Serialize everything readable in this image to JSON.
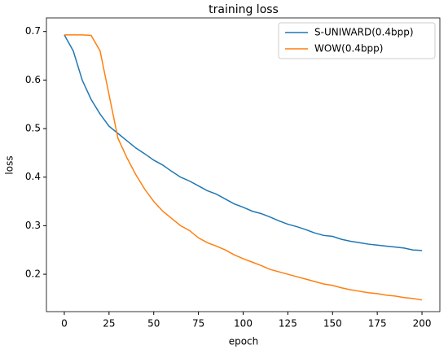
{
  "chart_data": {
    "type": "line",
    "title": "training loss",
    "xlabel": "epoch",
    "ylabel": "loss",
    "x": [
      0,
      5,
      10,
      15,
      20,
      25,
      30,
      35,
      40,
      45,
      50,
      55,
      60,
      65,
      70,
      75,
      80,
      85,
      90,
      95,
      100,
      105,
      110,
      115,
      120,
      125,
      130,
      135,
      140,
      145,
      150,
      155,
      160,
      165,
      170,
      175,
      180,
      185,
      190,
      195,
      200
    ],
    "series": [
      {
        "name": "S-UNIWARD(0.4bpp)",
        "color": "#1f77b4",
        "values": [
          0.693,
          0.66,
          0.6,
          0.56,
          0.53,
          0.505,
          0.49,
          0.475,
          0.46,
          0.448,
          0.435,
          0.425,
          0.412,
          0.4,
          0.392,
          0.382,
          0.372,
          0.365,
          0.355,
          0.345,
          0.338,
          0.33,
          0.325,
          0.318,
          0.31,
          0.303,
          0.298,
          0.292,
          0.285,
          0.28,
          0.278,
          0.272,
          0.268,
          0.265,
          0.262,
          0.26,
          0.258,
          0.256,
          0.254,
          0.25,
          0.249
        ]
      },
      {
        "name": "WOW(0.4bpp)",
        "color": "#ff7f0e",
        "values": [
          0.693,
          0.693,
          0.693,
          0.692,
          0.66,
          0.57,
          0.48,
          0.44,
          0.405,
          0.375,
          0.35,
          0.33,
          0.315,
          0.3,
          0.29,
          0.275,
          0.265,
          0.258,
          0.25,
          0.24,
          0.232,
          0.225,
          0.218,
          0.21,
          0.205,
          0.2,
          0.195,
          0.19,
          0.185,
          0.18,
          0.177,
          0.172,
          0.168,
          0.165,
          0.162,
          0.16,
          0.157,
          0.155,
          0.152,
          0.15,
          0.147
        ]
      }
    ],
    "xlim": [
      -10,
      210
    ],
    "xticks": [
      0,
      25,
      50,
      75,
      100,
      125,
      150,
      175,
      200
    ],
    "ylim": [
      0.123,
      0.728
    ],
    "yticks": [
      0.2,
      0.3,
      0.4,
      0.5,
      0.6,
      0.7
    ],
    "legend": "upper right"
  }
}
